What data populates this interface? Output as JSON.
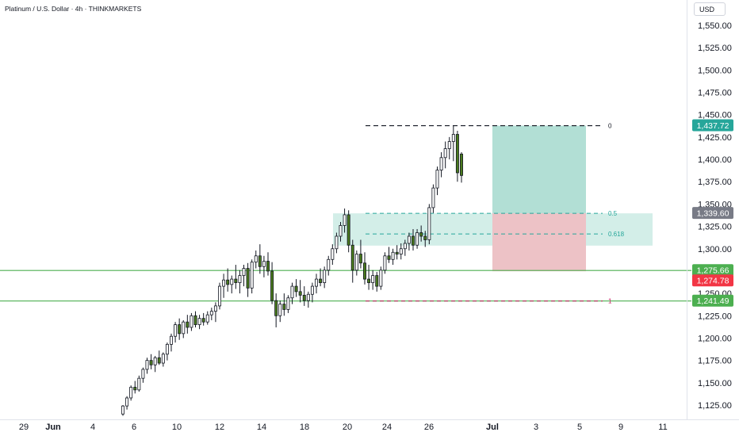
{
  "header": {
    "title": "Platinum / U.S. Dollar · 4h · THINKMARKETS"
  },
  "currency_label": "USD",
  "colors": {
    "up_body": "#ffffff",
    "down_body": "#4a7a1e",
    "wick": "#131722",
    "level_line": "#4caf50",
    "profit_zone": "#b2dfd5",
    "loss_zone": "#f7bdc3",
    "fib_zone": "#d3eee8",
    "fib_line": "#26a69a",
    "badge_green": "#26a69a",
    "badge_red": "#f23645",
    "badge_gray": "#787b86",
    "badge_level": "#4caf50"
  },
  "chart_data": {
    "type": "candlestick",
    "title": "Platinum / U.S. Dollar · 4h · THINKMARKETS",
    "ylim": [
      1113,
      1563
    ],
    "y_ticks": [
      "1,125.00",
      "1,150.00",
      "1,175.00",
      "1,200.00",
      "1,225.00",
      "1,250.00",
      "1,275.00",
      "1,300.00",
      "1,325.00",
      "1,350.00",
      "1,375.00",
      "1,400.00",
      "1,425.00",
      "1,450.00",
      "1,475.00",
      "1,500.00",
      "1,525.00",
      "1,550.00"
    ],
    "x_ticks": [
      "29",
      "Jun",
      "4",
      "6",
      "10",
      "12",
      "14",
      "18",
      "20",
      "24",
      "26",
      "Jul",
      "3",
      "5",
      "9",
      "11"
    ],
    "grid": false,
    "candles": [
      {
        "o": 1115,
        "h": 1125,
        "l": 1113,
        "c": 1124
      },
      {
        "o": 1124,
        "h": 1135,
        "l": 1120,
        "c": 1133
      },
      {
        "o": 1133,
        "h": 1147,
        "l": 1130,
        "c": 1145
      },
      {
        "o": 1145,
        "h": 1152,
        "l": 1138,
        "c": 1142
      },
      {
        "o": 1142,
        "h": 1158,
        "l": 1140,
        "c": 1155
      },
      {
        "o": 1155,
        "h": 1167,
        "l": 1150,
        "c": 1165
      },
      {
        "o": 1165,
        "h": 1178,
        "l": 1160,
        "c": 1175
      },
      {
        "o": 1175,
        "h": 1182,
        "l": 1165,
        "c": 1170
      },
      {
        "o": 1170,
        "h": 1180,
        "l": 1162,
        "c": 1178
      },
      {
        "o": 1178,
        "h": 1186,
        "l": 1170,
        "c": 1172
      },
      {
        "o": 1172,
        "h": 1184,
        "l": 1168,
        "c": 1182
      },
      {
        "o": 1182,
        "h": 1195,
        "l": 1175,
        "c": 1193
      },
      {
        "o": 1193,
        "h": 1205,
        "l": 1185,
        "c": 1202
      },
      {
        "o": 1202,
        "h": 1218,
        "l": 1195,
        "c": 1215
      },
      {
        "o": 1215,
        "h": 1222,
        "l": 1198,
        "c": 1205
      },
      {
        "o": 1205,
        "h": 1220,
        "l": 1200,
        "c": 1218
      },
      {
        "o": 1218,
        "h": 1226,
        "l": 1205,
        "c": 1212
      },
      {
        "o": 1212,
        "h": 1228,
        "l": 1208,
        "c": 1225
      },
      {
        "o": 1225,
        "h": 1230,
        "l": 1212,
        "c": 1215
      },
      {
        "o": 1215,
        "h": 1226,
        "l": 1210,
        "c": 1222
      },
      {
        "o": 1222,
        "h": 1228,
        "l": 1214,
        "c": 1218
      },
      {
        "o": 1218,
        "h": 1230,
        "l": 1215,
        "c": 1226
      },
      {
        "o": 1226,
        "h": 1234,
        "l": 1220,
        "c": 1230
      },
      {
        "o": 1230,
        "h": 1240,
        "l": 1218,
        "c": 1236
      },
      {
        "o": 1236,
        "h": 1262,
        "l": 1232,
        "c": 1258
      },
      {
        "o": 1258,
        "h": 1272,
        "l": 1245,
        "c": 1265
      },
      {
        "o": 1265,
        "h": 1278,
        "l": 1252,
        "c": 1260
      },
      {
        "o": 1260,
        "h": 1270,
        "l": 1250,
        "c": 1266
      },
      {
        "o": 1266,
        "h": 1282,
        "l": 1255,
        "c": 1262
      },
      {
        "o": 1262,
        "h": 1276,
        "l": 1250,
        "c": 1270
      },
      {
        "o": 1270,
        "h": 1282,
        "l": 1258,
        "c": 1278
      },
      {
        "o": 1278,
        "h": 1284,
        "l": 1246,
        "c": 1256
      },
      {
        "o": 1256,
        "h": 1288,
        "l": 1250,
        "c": 1285
      },
      {
        "o": 1285,
        "h": 1298,
        "l": 1278,
        "c": 1292
      },
      {
        "o": 1292,
        "h": 1305,
        "l": 1272,
        "c": 1280
      },
      {
        "o": 1280,
        "h": 1292,
        "l": 1268,
        "c": 1286
      },
      {
        "o": 1286,
        "h": 1296,
        "l": 1270,
        "c": 1275
      },
      {
        "o": 1275,
        "h": 1285,
        "l": 1238,
        "c": 1242
      },
      {
        "o": 1242,
        "h": 1250,
        "l": 1212,
        "c": 1225
      },
      {
        "o": 1225,
        "h": 1242,
        "l": 1218,
        "c": 1238
      },
      {
        "o": 1238,
        "h": 1250,
        "l": 1225,
        "c": 1232
      },
      {
        "o": 1232,
        "h": 1248,
        "l": 1228,
        "c": 1245
      },
      {
        "o": 1245,
        "h": 1262,
        "l": 1238,
        "c": 1258
      },
      {
        "o": 1258,
        "h": 1266,
        "l": 1246,
        "c": 1252
      },
      {
        "o": 1252,
        "h": 1265,
        "l": 1240,
        "c": 1248
      },
      {
        "o": 1248,
        "h": 1258,
        "l": 1236,
        "c": 1242
      },
      {
        "o": 1242,
        "h": 1252,
        "l": 1234,
        "c": 1249
      },
      {
        "o": 1249,
        "h": 1262,
        "l": 1240,
        "c": 1258
      },
      {
        "o": 1258,
        "h": 1272,
        "l": 1250,
        "c": 1266
      },
      {
        "o": 1266,
        "h": 1278,
        "l": 1258,
        "c": 1262
      },
      {
        "o": 1262,
        "h": 1280,
        "l": 1256,
        "c": 1276
      },
      {
        "o": 1276,
        "h": 1292,
        "l": 1270,
        "c": 1288
      },
      {
        "o": 1288,
        "h": 1305,
        "l": 1282,
        "c": 1300
      },
      {
        "o": 1300,
        "h": 1318,
        "l": 1295,
        "c": 1314
      },
      {
        "o": 1314,
        "h": 1330,
        "l": 1308,
        "c": 1326
      },
      {
        "o": 1326,
        "h": 1345,
        "l": 1318,
        "c": 1338
      },
      {
        "o": 1338,
        "h": 1343,
        "l": 1296,
        "c": 1304
      },
      {
        "o": 1304,
        "h": 1310,
        "l": 1262,
        "c": 1276
      },
      {
        "o": 1276,
        "h": 1298,
        "l": 1270,
        "c": 1294
      },
      {
        "o": 1294,
        "h": 1310,
        "l": 1278,
        "c": 1284
      },
      {
        "o": 1284,
        "h": 1296,
        "l": 1260,
        "c": 1266
      },
      {
        "o": 1266,
        "h": 1282,
        "l": 1254,
        "c": 1262
      },
      {
        "o": 1262,
        "h": 1276,
        "l": 1254,
        "c": 1270
      },
      {
        "o": 1270,
        "h": 1274,
        "l": 1252,
        "c": 1258
      },
      {
        "o": 1258,
        "h": 1280,
        "l": 1254,
        "c": 1276
      },
      {
        "o": 1276,
        "h": 1296,
        "l": 1272,
        "c": 1292
      },
      {
        "o": 1292,
        "h": 1302,
        "l": 1284,
        "c": 1288
      },
      {
        "o": 1288,
        "h": 1300,
        "l": 1282,
        "c": 1296
      },
      {
        "o": 1296,
        "h": 1304,
        "l": 1288,
        "c": 1294
      },
      {
        "o": 1294,
        "h": 1306,
        "l": 1288,
        "c": 1300
      },
      {
        "o": 1300,
        "h": 1310,
        "l": 1292,
        "c": 1306
      },
      {
        "o": 1306,
        "h": 1318,
        "l": 1298,
        "c": 1314
      },
      {
        "o": 1314,
        "h": 1322,
        "l": 1298,
        "c": 1304
      },
      {
        "o": 1304,
        "h": 1322,
        "l": 1300,
        "c": 1318
      },
      {
        "o": 1318,
        "h": 1326,
        "l": 1308,
        "c": 1314
      },
      {
        "o": 1314,
        "h": 1320,
        "l": 1302,
        "c": 1310
      },
      {
        "o": 1310,
        "h": 1350,
        "l": 1305,
        "c": 1346
      },
      {
        "o": 1346,
        "h": 1372,
        "l": 1340,
        "c": 1368
      },
      {
        "o": 1368,
        "h": 1392,
        "l": 1360,
        "c": 1388
      },
      {
        "o": 1388,
        "h": 1408,
        "l": 1380,
        "c": 1402
      },
      {
        "o": 1402,
        "h": 1420,
        "l": 1390,
        "c": 1412
      },
      {
        "o": 1412,
        "h": 1425,
        "l": 1400,
        "c": 1420
      },
      {
        "o": 1420,
        "h": 1438,
        "l": 1398,
        "c": 1428
      },
      {
        "o": 1428,
        "h": 1432,
        "l": 1375,
        "c": 1385
      },
      {
        "o": 1406,
        "h": 1408,
        "l": 1374,
        "c": 1382
      }
    ],
    "position_tool": {
      "entry": 1275.66,
      "stop": 1274.78,
      "target": 1437.72,
      "start_date_tick": "Jul",
      "end_date_tick": "5"
    },
    "fib_retracement": {
      "top": 1437.72,
      "bottom": 1241.49,
      "levels": [
        {
          "ratio": 0,
          "label": "0",
          "value": 1437.72
        },
        {
          "ratio": 0.5,
          "label": "0.5",
          "value": 1339.6
        },
        {
          "ratio": 0.618,
          "label": "0.618",
          "value": 1316.5
        },
        {
          "ratio": 1,
          "label": "1",
          "value": 1241.49
        }
      ]
    },
    "horizontal_levels": [
      1275.66,
      1241.49
    ],
    "price_badges": [
      {
        "label": "1,437.72",
        "value": 1437.72,
        "color": "badge_green"
      },
      {
        "label": "1,339.60",
        "value": 1339.6,
        "color": "badge_gray"
      },
      {
        "label": "1,275.66",
        "value": 1275.66,
        "color": "badge_level"
      },
      {
        "label": "1,274.78",
        "value": 1274.78,
        "color": "badge_red"
      },
      {
        "label": "1,241.49",
        "value": 1241.49,
        "color": "badge_level"
      }
    ]
  }
}
